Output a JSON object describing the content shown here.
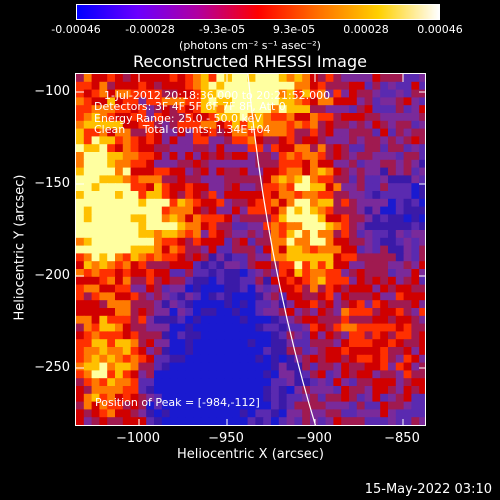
{
  "colorbar": {
    "ticks": [
      "-0.00046",
      "-0.00028",
      "-9.3e-05",
      "9.3e-05",
      "0.00028",
      "0.00046"
    ],
    "unit_label": "(photons cm⁻² s⁻¹ asec⁻²)",
    "stops": [
      "#0000ff",
      "#6a00ff",
      "#b000a0",
      "#ff0000",
      "#ff7000",
      "#ffd000",
      "#ffffff"
    ]
  },
  "title": "Reconstructed RHESSI Image",
  "info": {
    "line1": "1-Jul-2012 20:18:36.000 to 20:21:52.000",
    "line2": "Detectors: 3F 4F 5F 6F 7F 8F, Att 0",
    "line3": "Energy Range: 25.0 - 50.0 keV",
    "line4": "Clean     Total counts: 1.34E+04"
  },
  "peak": "Position of Peak = [-984,-112]",
  "axes": {
    "xlabel": "Heliocentric X (arcsec)",
    "ylabel": "Heliocentric Y (arcsec)",
    "x_ticks": [
      "−1000",
      "−950",
      "−900",
      "−850"
    ],
    "y_ticks": [
      "−100",
      "−150",
      "−200",
      "−250"
    ],
    "x_range": [
      -1030,
      -832
    ],
    "y_range": [
      -280,
      -90
    ]
  },
  "footer": "15-May-2022 03:10"
}
